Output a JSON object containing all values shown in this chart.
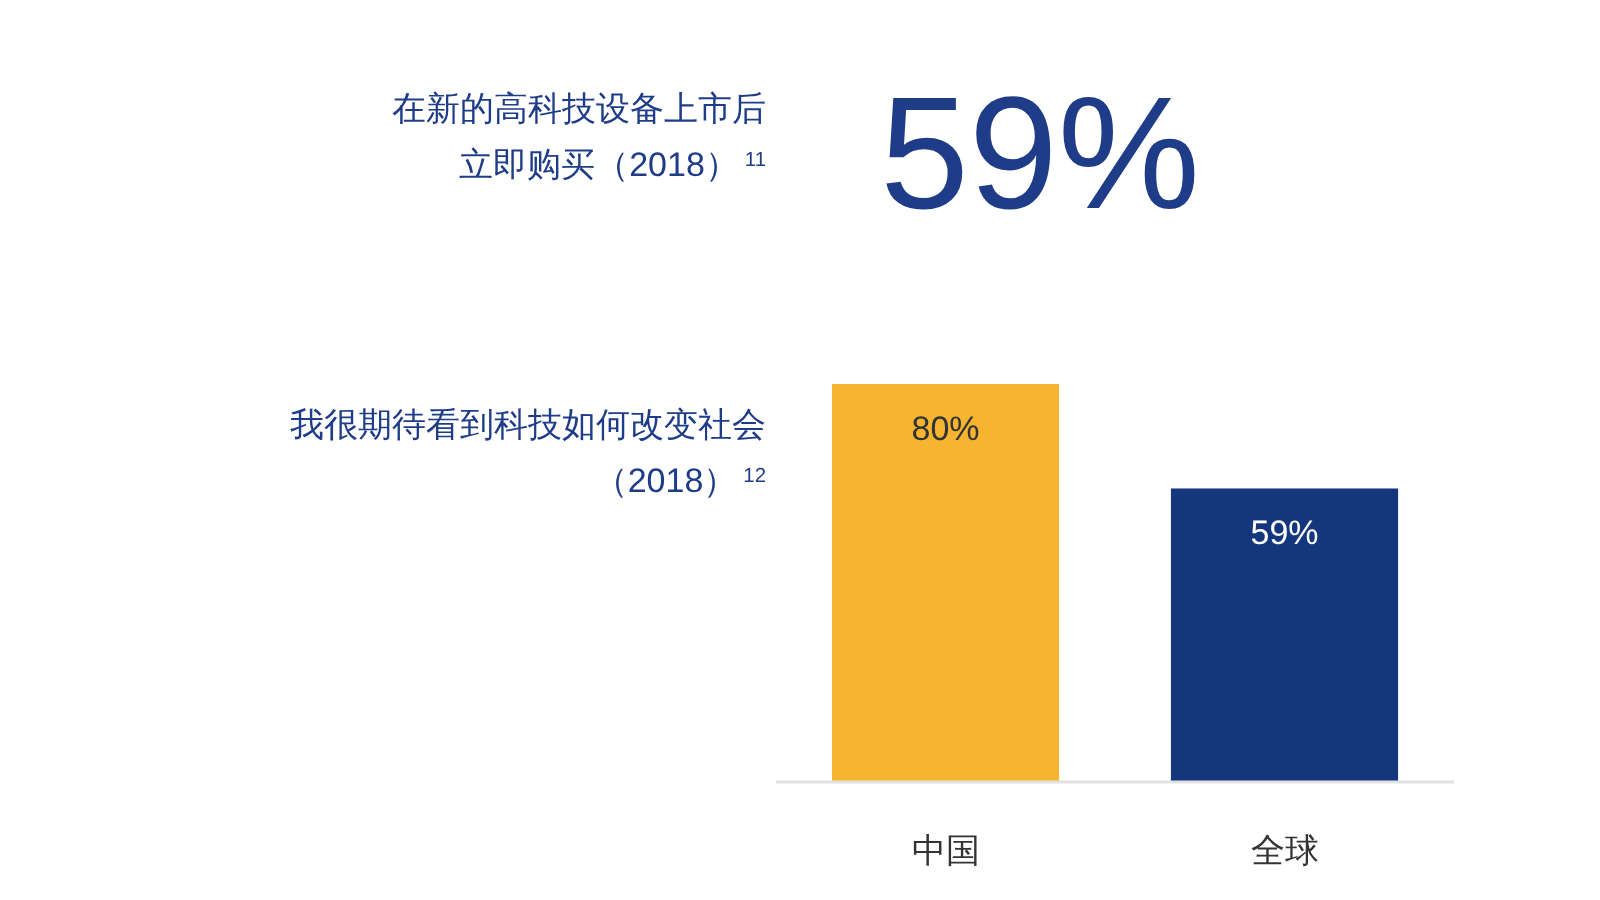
{
  "chart_data": [
    {
      "type": "other",
      "title": "在新的高科技设备上市后立即购买（2018）$^{11}$",
      "annotations": [
        "59%"
      ]
    },
    {
      "type": "bar",
      "title": "我很期待看到科技如何改变社会（2018）$^{12}$",
      "categories": [
        "中国",
        "全球"
      ],
      "values": [
        80,
        59
      ],
      "colors": [
        "#f6b431",
        "#13367d"
      ],
      "value_labels": [
        "80%",
        "59%"
      ]
    }
  ]
}
